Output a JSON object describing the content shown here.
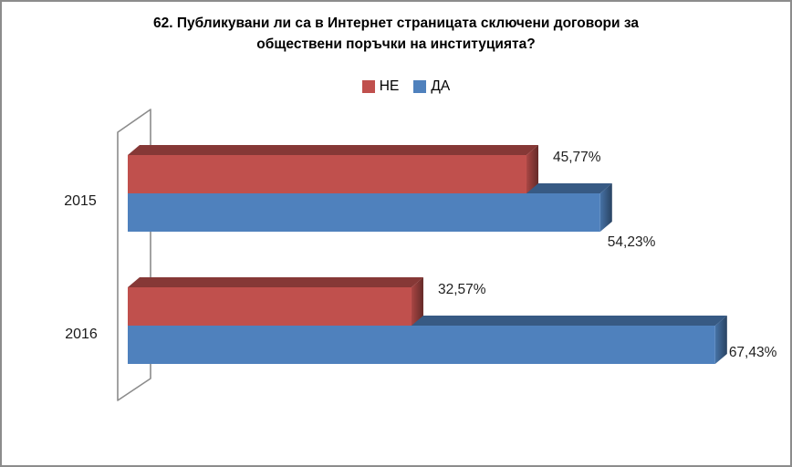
{
  "title": {
    "line1": "62. Публикувани ли са в Интернет страницата сключени договори за",
    "line2": "обществени поръчки на институцията?"
  },
  "chart_data": {
    "type": "bar",
    "orientation": "horizontal",
    "style": "3d",
    "title": "62. Публикувани ли са в Интернет страницата сключени договори за обществени поръчки на институцията?",
    "categories": [
      "2015",
      "2016"
    ],
    "series": [
      {
        "name": "НЕ",
        "color": "#C0504D",
        "values": [
          45.77,
          32.57
        ],
        "labels": [
          "45,77%",
          "32,57%"
        ]
      },
      {
        "name": "ДА",
        "color": "#4F81BD",
        "values": [
          54.23,
          67.43
        ],
        "labels": [
          "54,23%",
          "67,43%"
        ]
      }
    ],
    "value_unit": "%",
    "xlim": [
      0,
      75
    ],
    "legend_position": "top",
    "grid": false,
    "data_labels": true
  },
  "colors": {
    "frame_border": "#8C8C8C",
    "wall_stroke": "#8C8C8C",
    "wall_fill": "#FFFFFF",
    "red_series": "#C0504D",
    "blue_series": "#4F81BD",
    "label_text": "#1F1F1F"
  }
}
